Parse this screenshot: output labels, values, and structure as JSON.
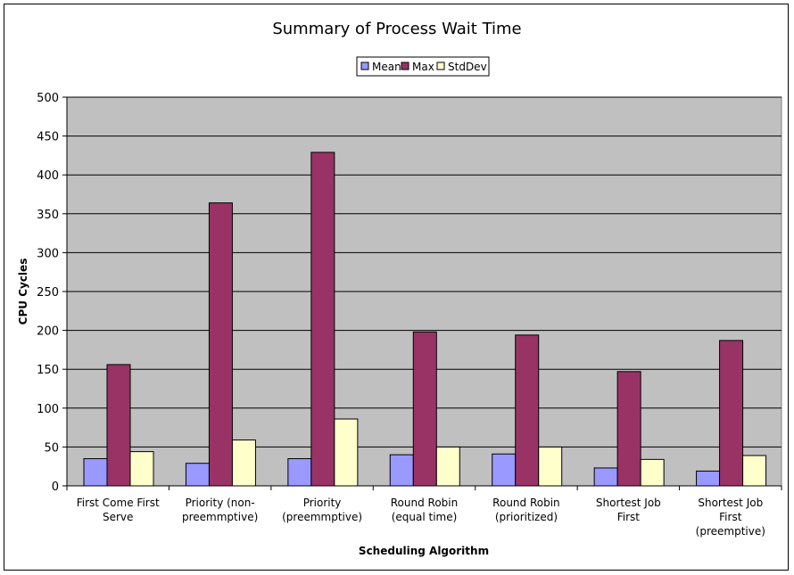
{
  "chart_data": {
    "type": "bar",
    "title": "Summary of Process  Wait Time",
    "xlabel": "Scheduling Algorithm",
    "ylabel": "CPU Cycles",
    "ylim": [
      0,
      500
    ],
    "yticks": [
      0,
      50,
      100,
      150,
      200,
      250,
      300,
      350,
      400,
      450,
      500
    ],
    "grid": true,
    "legend_position": "top-center",
    "categories": [
      [
        "First Come First",
        "Serve"
      ],
      [
        "Priority (non-",
        "preemmptive)"
      ],
      [
        "Priority",
        "(preemmptive)"
      ],
      [
        "Round Robin",
        "(equal time)"
      ],
      [
        "Round Robin",
        "(prioritized)"
      ],
      [
        "Shortest Job",
        "First"
      ],
      [
        "Shortest Job",
        "First",
        "(preemptive)"
      ]
    ],
    "series": [
      {
        "name": "Mean",
        "color": "#9999ff",
        "values": [
          35,
          29,
          35,
          40,
          41,
          23,
          19
        ]
      },
      {
        "name": "Max",
        "color": "#993366",
        "values": [
          156,
          364,
          429,
          198,
          194,
          147,
          187
        ]
      },
      {
        "name": "StdDev",
        "color": "#ffffcc",
        "values": [
          44,
          59,
          86,
          50,
          50,
          34,
          39
        ]
      }
    ],
    "plot_area_color": "#c0c0c0"
  }
}
